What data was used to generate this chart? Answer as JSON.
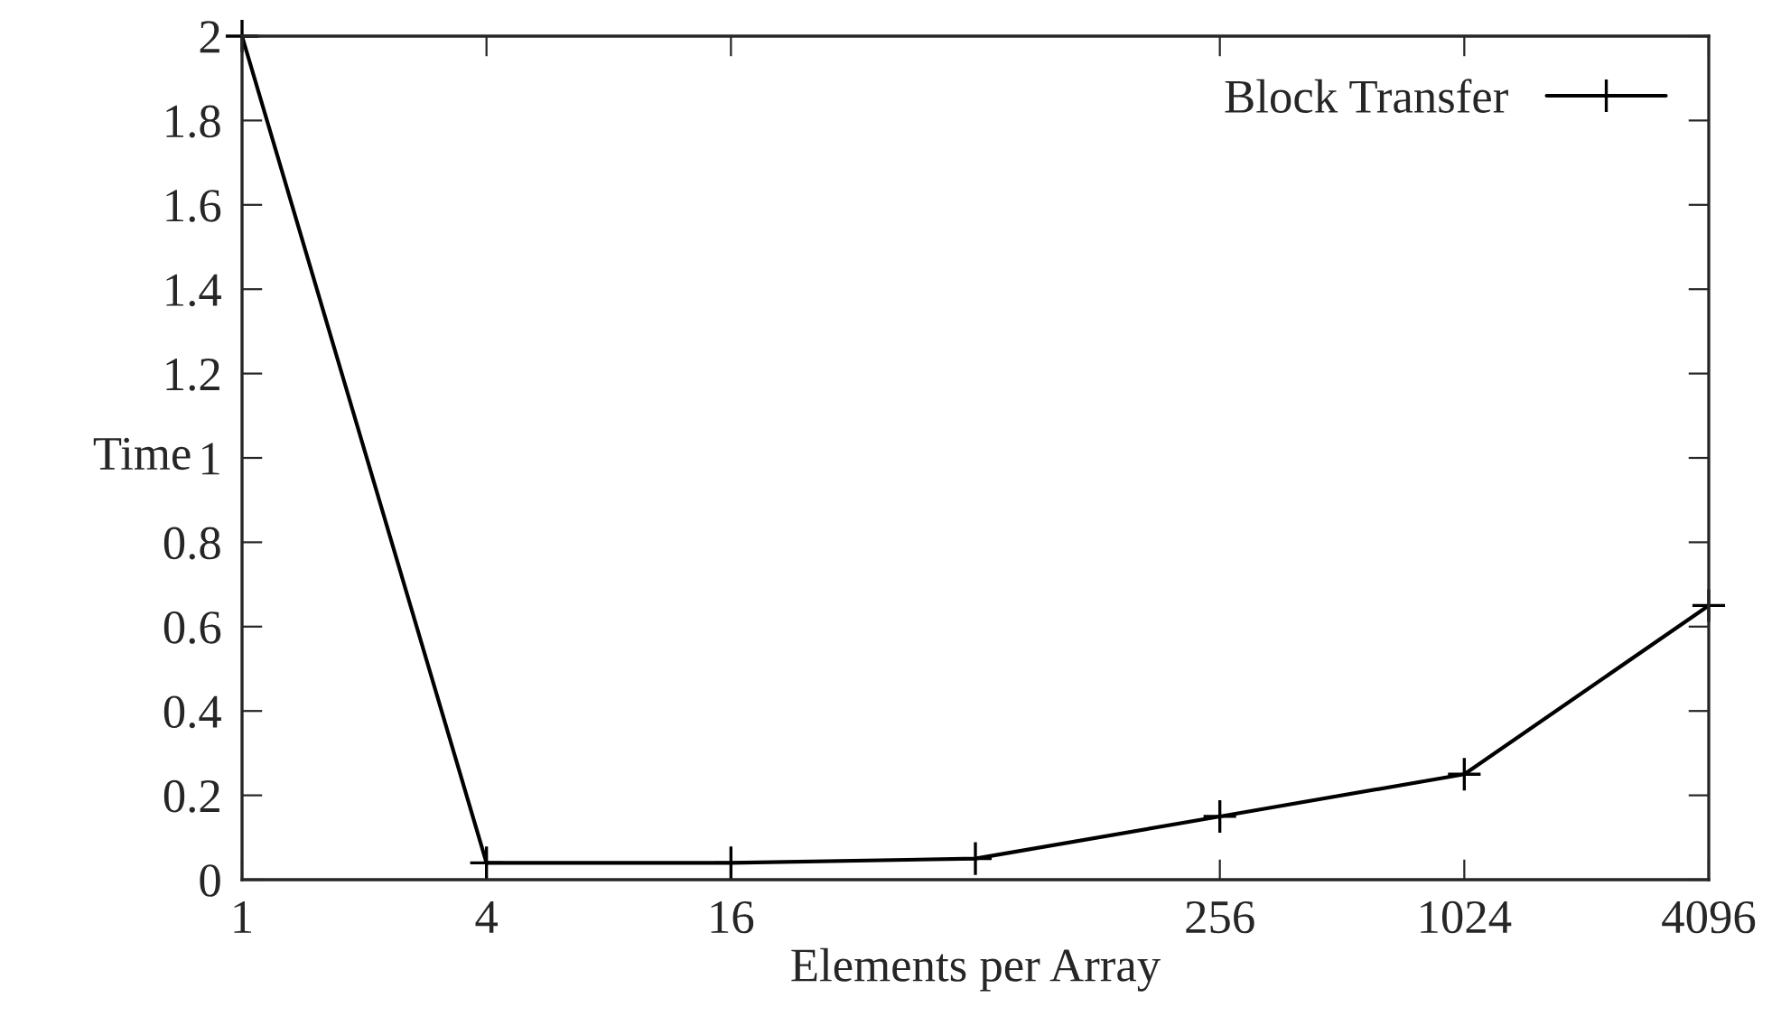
{
  "chart_data": {
    "type": "line",
    "xlabel": "Elements per Array",
    "ylabel": "Time",
    "log": "x",
    "x": [
      1,
      4,
      16,
      64,
      256,
      1024,
      4096
    ],
    "series": [
      {
        "name": "Block Transfer",
        "color": "#000000",
        "values": [
          2.0,
          0.04,
          0.04,
          0.05,
          0.15,
          0.25,
          0.65
        ]
      }
    ],
    "xlim": [
      1,
      4096
    ],
    "xticks": [
      1,
      4,
      16,
      256,
      1024,
      4096
    ],
    "ylim": [
      0,
      2
    ],
    "yticks": [
      0,
      0.2,
      0.4,
      0.6,
      0.8,
      1,
      1.2,
      1.4,
      1.6,
      1.8,
      2
    ],
    "marker": "cross",
    "line_style": "solid",
    "legend": "top right",
    "grid": false
  }
}
